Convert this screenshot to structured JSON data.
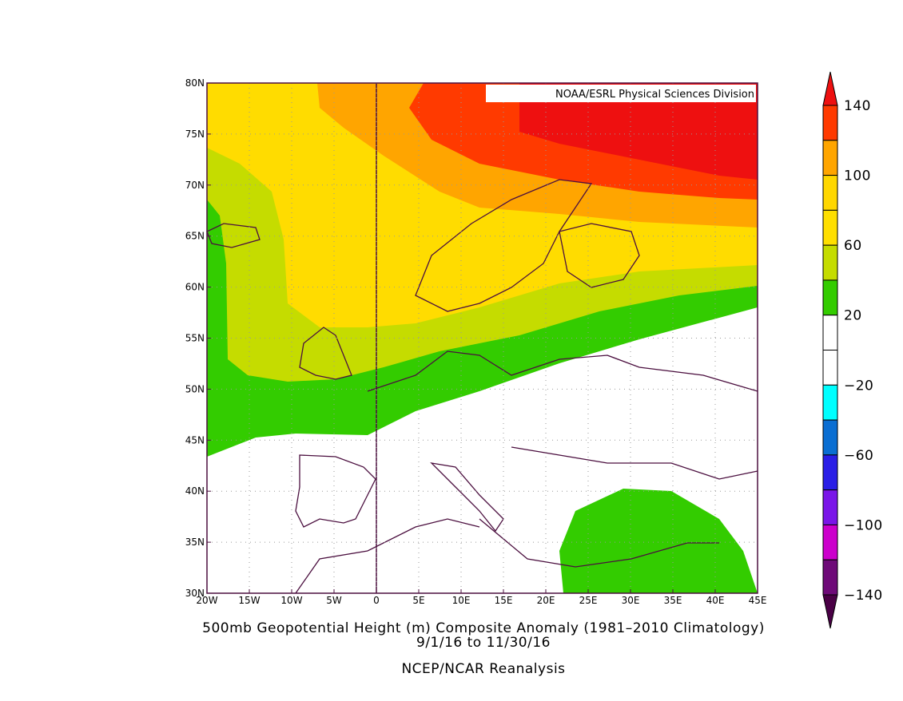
{
  "map": {
    "credit": "NOAA/ESRL Physical Sciences Division",
    "lon_ticks": [
      "20W",
      "15W",
      "10W",
      "5W",
      "0",
      "5E",
      "10E",
      "15E",
      "20E",
      "25E",
      "30E",
      "35E",
      "40E",
      "45E"
    ],
    "lat_ticks": [
      "80N",
      "75N",
      "70N",
      "65N",
      "60N",
      "55N",
      "50N",
      "45N",
      "40N",
      "35N",
      "30N"
    ],
    "title": "500mb Geopotential Height (m) Composite Anomaly (1981–2010 Climatology)",
    "dates": "9/1/16  to 11/30/16",
    "source": "NCEP/NCAR Reanalysis"
  },
  "colorbar": {
    "labels": [
      "140",
      "100",
      "60",
      "20",
      "−20",
      "−60",
      "−100",
      "−140"
    ],
    "over_color": "#ee1010",
    "colors": [
      "#ff3a00",
      "#ffa500",
      "#ffd700",
      "#ffdf00",
      "#c5dc00",
      "#33cc00",
      "#ffffff",
      "#ffffff",
      "#00ffff",
      "#0a6ed2",
      "#2a1ee6",
      "#7a16e8",
      "#cc00cc",
      "#6e0a78"
    ],
    "under_color": "#4a0046"
  }
}
